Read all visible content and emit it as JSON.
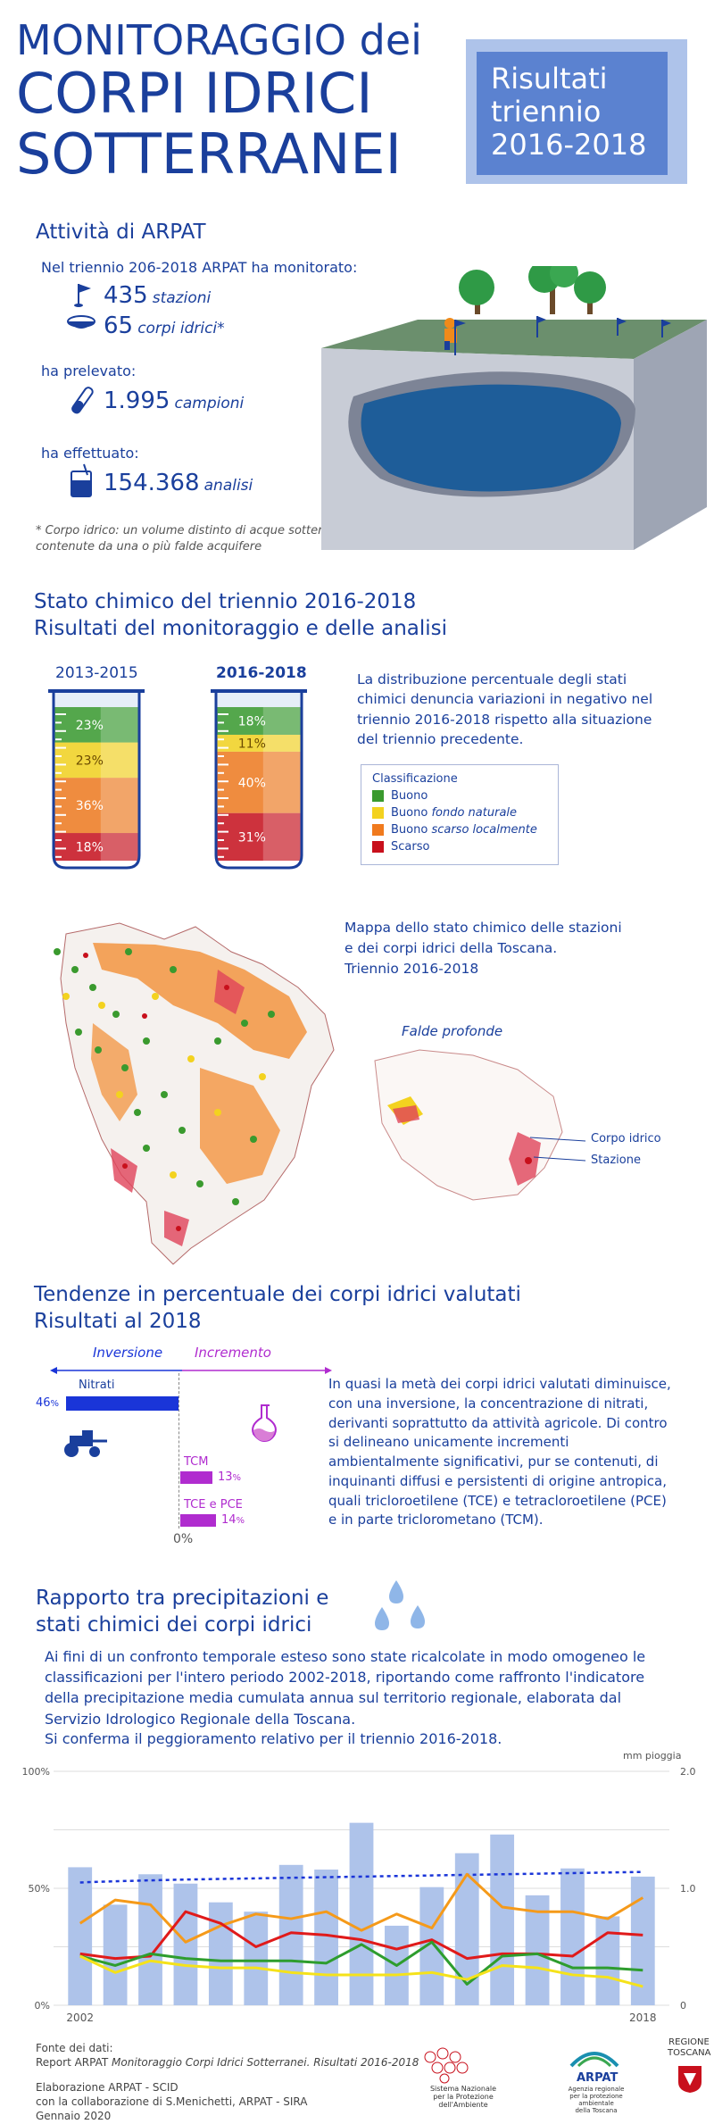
{
  "header": {
    "title_line1": "MONITORAGGIO dei",
    "title_line2": "CORPI IDRICI",
    "title_line3": "SOTTERRANEI",
    "badge_line1": "Risultati",
    "badge_line2": "triennio",
    "badge_line3": "2016-2018"
  },
  "activity": {
    "heading": "Attività di ARPAT",
    "intro": "Nel triennio 206-2018 ARPAT ha monitorato:",
    "stations_value": "435",
    "stations_unit": "stazioni",
    "bodies_value": "65",
    "bodies_unit": "corpi idrici*",
    "sampled_label": "ha prelevato:",
    "samples_value": "1.995",
    "samples_unit": "campioni",
    "performed_label": "ha effettuato:",
    "analyses_value": "154.368",
    "analyses_unit": "analisi",
    "footnote_line1": "* Corpo idrico: un volume distinto di acque sotterranee",
    "footnote_line2": "contenute da una o più falde acquifere"
  },
  "chemical_state": {
    "heading_line1": "Stato chimico del triennio 2016-2018",
    "heading_line2": "Risultati del monitoraggio e delle analisi",
    "description": "La distribuzione percentuale degli stati chimici denuncia variazioni in negativo nel triennio 2016-2018 rispetto alla situazione del triennio precedente.",
    "legend_title": "Classificazione",
    "legend": [
      {
        "label": "Buono",
        "italic": "",
        "color": "#3a9a2e"
      },
      {
        "label": "Buono ",
        "italic": "fondo naturale",
        "color": "#f3d21f"
      },
      {
        "label": "Buono ",
        "italic": "scarso localmente",
        "color": "#f07a1e"
      },
      {
        "label": "Scarso",
        "italic": "",
        "color": "#c8101c"
      }
    ]
  },
  "map": {
    "caption_line1": "Mappa dello stato chimico delle stazioni",
    "caption_line2": "e dei corpi idrici della Toscana.",
    "caption_line3": "Triennio 2016-2018",
    "inset_title": "Falde profonde",
    "label_body": "Corpo idrico",
    "label_station": "Stazione"
  },
  "trends": {
    "heading_line1": "Tendenze in percentuale dei corpi idrici valutati",
    "heading_line2": "Risultati al 2018",
    "inversion_label": "Inversione",
    "increment_label": "Incremento",
    "zero_label": "0%",
    "items": [
      {
        "name": "Nitrati",
        "value": "46",
        "unit": "%",
        "color": "#1a35d8"
      },
      {
        "name": "TCM",
        "value": "13",
        "unit": "%",
        "color": "#b02ccf"
      },
      {
        "name": "TCE e PCE",
        "value": "14",
        "unit": "%",
        "color": "#b02ccf"
      }
    ],
    "text": "In quasi la metà dei corpi idrici valutati diminuisce, con una inversione, la concentrazione di nitrati, derivanti soprattutto da attività agricole. Di contro si delineano unicamente incrementi ambientalmente significativi, pur se contenuti, di inquinanti diffusi e persistenti di origine antropica, quali tricloroetilene (TCE) e tetracloroetilene (PCE) e in parte triclorometano (TCM)."
  },
  "rain": {
    "heading_line1": "Rapporto tra precipitazioni e",
    "heading_line2": "stati chimici dei corpi idrici",
    "paragraph": "Ai fini di un confronto temporale esteso sono state ricalcolate in modo omogeneo le classificazioni per l'intero periodo 2002-2018, riportando come raffronto l'indicatore della precipitazione media cumulata annua sul territorio regionale, elaborata dal Servizio Idrologico Regionale della Toscana.",
    "conclusion": "Si conferma il peggioramento relativo per il triennio 2016-2018."
  },
  "chart_data": [
    {
      "type": "bar",
      "title": "2013-2015",
      "categories": [
        "Buono",
        "Buono fondo naturale",
        "Buono scarso localmente",
        "Scarso"
      ],
      "values": [
        23,
        23,
        36,
        18
      ],
      "labels": [
        "23%",
        "23%",
        "36%",
        "18%"
      ],
      "colors": [
        "#3a9a2e",
        "#f3d21f",
        "#f07a1e",
        "#c8101c"
      ]
    },
    {
      "type": "bar",
      "title": "2016-2018",
      "categories": [
        "Buono",
        "Buono fondo naturale",
        "Buono scarso localmente",
        "Scarso"
      ],
      "values": [
        18,
        11,
        40,
        31
      ],
      "labels": [
        "18%",
        "11%",
        "40%",
        "31%"
      ],
      "colors": [
        "#3a9a2e",
        "#f3d21f",
        "#f07a1e",
        "#c8101c"
      ]
    },
    {
      "type": "line",
      "x_start_label": "2002",
      "x_end_label": "2018",
      "y_left_ticks": [
        "100%",
        "50%",
        "0%"
      ],
      "y_right_unit": "mm pioggia",
      "y_right_ticks": [
        "2.000",
        "1.000",
        "0"
      ],
      "ylim_left": [
        0,
        100
      ],
      "ylim_right": [
        0,
        2000
      ],
      "x": [
        2002,
        2003,
        2004,
        2005,
        2006,
        2007,
        2008,
        2009,
        2010,
        2011,
        2012,
        2013,
        2014,
        2015,
        2016,
        2017,
        2018
      ],
      "rain_bars": [
        1180,
        860,
        1120,
        1040,
        880,
        800,
        1200,
        1160,
        1560,
        680,
        1010,
        1300,
        1460,
        940,
        1170,
        760,
        1100
      ],
      "rain_bar_color": "#aec3ea",
      "rain_trend": [
        1050,
        1060,
        1068,
        1075,
        1080,
        1085,
        1090,
        1095,
        1100,
        1105,
        1110,
        1115,
        1120,
        1125,
        1130,
        1135,
        1140
      ],
      "series": [
        {
          "color": "#f59a1a",
          "values": [
            35,
            45,
            43,
            27,
            34,
            39,
            37,
            40,
            32,
            39,
            33,
            56,
            42,
            40,
            40,
            37,
            46
          ]
        },
        {
          "color": "#e01a1a",
          "values": [
            22,
            20,
            21,
            40,
            35,
            25,
            31,
            30,
            28,
            24,
            28,
            20,
            22,
            22,
            21,
            31,
            30
          ]
        },
        {
          "color": "#2e9d2e",
          "values": [
            21,
            17,
            22,
            20,
            19,
            19,
            19,
            18,
            26,
            17,
            27,
            9,
            21,
            22,
            16,
            16,
            15
          ]
        },
        {
          "color": "#f5e21a",
          "values": [
            21,
            14,
            19,
            17,
            16,
            16,
            14,
            13,
            13,
            13,
            14,
            11,
            17,
            16,
            13,
            12,
            8
          ]
        }
      ]
    }
  ],
  "footer": {
    "source_line1": "Fonte dei dati:",
    "source_line2_plain": "Report ARPAT ",
    "source_line2_italic": "Monitoraggio Corpi Idrici Sotterranei. Risultati 2016-2018",
    "elab_line1": "Elaborazione ARPAT - SCID",
    "elab_line2": "con la collaborazione di S.Menichetti, ARPAT - SIRA",
    "elab_line3": "Gennaio 2020",
    "logo1_line1": "Sistema Nazionale",
    "logo1_line2": "per la Protezione",
    "logo1_line3": "dell'Ambiente",
    "logo2_name": "ARPAT",
    "logo2_line1": "Agenzia regionale",
    "logo2_line2": "per la protezione ambientale",
    "logo2_line3": "della Toscana",
    "logo3_line1": "REGIONE",
    "logo3_line2": "TOSCANA"
  }
}
